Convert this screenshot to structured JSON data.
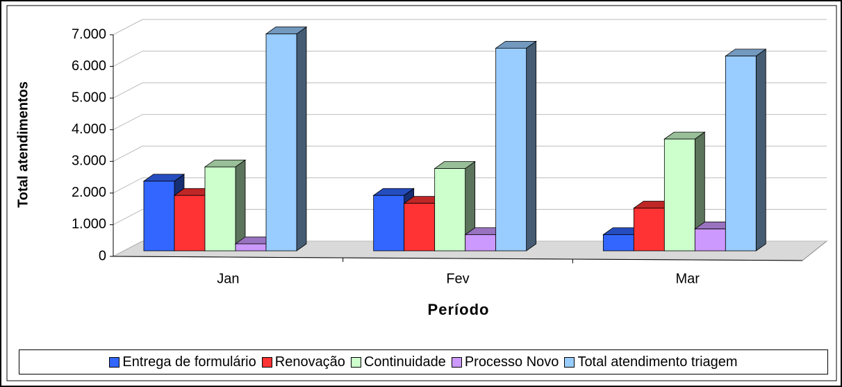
{
  "chart_data": {
    "type": "bar3d",
    "y_label": "Total atendimentos",
    "x_label": "Período",
    "categories": [
      "Jan",
      "Fev",
      "Mar"
    ],
    "series": [
      {
        "name": "Entrega de formulário",
        "color": "#3366ff",
        "values": [
          2200,
          1750,
          510
        ]
      },
      {
        "name": "Renovação",
        "color": "#ff3333",
        "values": [
          1750,
          1500,
          1350
        ]
      },
      {
        "name": "Continuidade",
        "color": "#ccffcc",
        "values": [
          2650,
          2600,
          3530
        ]
      },
      {
        "name": "Processo Novo",
        "color": "#cc99ff",
        "values": [
          220,
          510,
          690
        ]
      },
      {
        "name": "Total atendimento triagem",
        "color": "#99ccff",
        "values": [
          6850,
          6400,
          6150
        ]
      }
    ],
    "ylim": [
      0,
      7000
    ],
    "yticks": [
      0,
      {
        "value": 1000,
        "label": "1.000"
      },
      {
        "value": 2000,
        "label": "2.000"
      },
      {
        "value": 3000,
        "label": "3.000"
      },
      {
        "value": 4000,
        "label": "4.000"
      },
      {
        "value": 5000,
        "label": "5.000"
      },
      {
        "value": 6000,
        "label": "6.000"
      },
      {
        "value": 7000,
        "label": "7.000"
      }
    ],
    "grid": true
  }
}
